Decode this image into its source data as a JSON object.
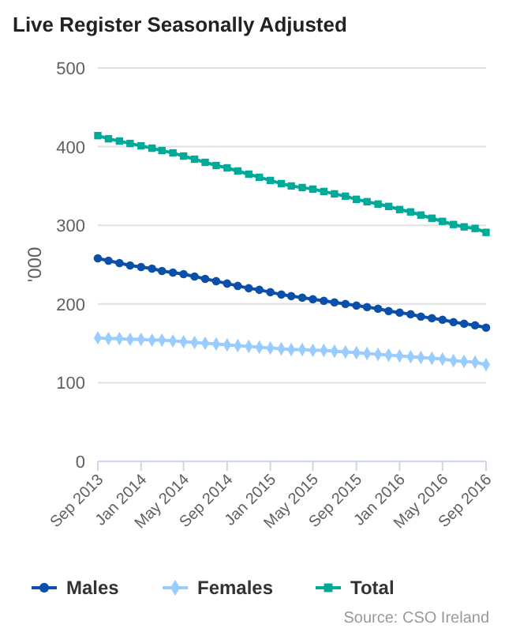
{
  "chart_data": {
    "type": "line",
    "title": "Live Register Seasonally Adjusted",
    "ylabel": "'000",
    "x": [
      "2013-09",
      "2013-10",
      "2013-11",
      "2013-12",
      "2014-01",
      "2014-02",
      "2014-03",
      "2014-04",
      "2014-05",
      "2014-06",
      "2014-07",
      "2014-08",
      "2014-09",
      "2014-10",
      "2014-11",
      "2014-12",
      "2015-01",
      "2015-02",
      "2015-03",
      "2015-04",
      "2015-05",
      "2015-06",
      "2015-07",
      "2015-08",
      "2015-09",
      "2015-10",
      "2015-11",
      "2015-12",
      "2016-01",
      "2016-02",
      "2016-03",
      "2016-04",
      "2016-05",
      "2016-06",
      "2016-07",
      "2016-08",
      "2016-09"
    ],
    "series": [
      {
        "name": "Males",
        "color": "#0a4fa8",
        "marker": "circle",
        "values": [
          258,
          255,
          252,
          249,
          247,
          245,
          242,
          240,
          238,
          235,
          232,
          229,
          226,
          223,
          220,
          218,
          215,
          212,
          210,
          208,
          206,
          204,
          202,
          200,
          198,
          196,
          194,
          191,
          189,
          187,
          184,
          182,
          180,
          177,
          175,
          173,
          170
        ]
      },
      {
        "name": "Females",
        "color": "#99ccff",
        "marker": "diamond",
        "values": [
          157,
          156,
          156,
          155,
          155,
          154,
          154,
          153,
          152,
          151,
          150,
          149,
          148,
          147,
          146,
          145,
          144,
          143,
          142,
          142,
          141,
          141,
          140,
          139,
          138,
          137,
          136,
          135,
          134,
          133,
          132,
          131,
          130,
          128,
          127,
          126,
          123
        ]
      },
      {
        "name": "Total",
        "color": "#00aa99",
        "marker": "square",
        "values": [
          414,
          410,
          407,
          404,
          401,
          398,
          395,
          392,
          388,
          384,
          380,
          376,
          373,
          369,
          365,
          361,
          357,
          353,
          350,
          348,
          346,
          343,
          340,
          337,
          333,
          330,
          327,
          324,
          320,
          317,
          313,
          309,
          305,
          301,
          298,
          296,
          291
        ]
      }
    ],
    "xlim": [
      "2013-09",
      "2016-09"
    ],
    "xticks": [
      {
        "value": "2013-09",
        "label": "Sep 2013"
      },
      {
        "value": "2014-01",
        "label": "Jan 2014"
      },
      {
        "value": "2014-05",
        "label": "May 2014"
      },
      {
        "value": "2014-09",
        "label": "Sep 2014"
      },
      {
        "value": "2015-01",
        "label": "Jan 2015"
      },
      {
        "value": "2015-05",
        "label": "May 2015"
      },
      {
        "value": "2015-09",
        "label": "Sep 2015"
      },
      {
        "value": "2016-01",
        "label": "Jan 2016"
      },
      {
        "value": "2016-05",
        "label": "May 2016"
      },
      {
        "value": "2016-09",
        "label": "Sep 2016"
      }
    ],
    "ylim": [
      0,
      500
    ],
    "yticks": [
      0,
      100,
      200,
      300,
      400,
      500
    ],
    "grid": "y",
    "legend": "bottom",
    "line_style": "solid",
    "annotations": [
      "Source: CSO Ireland"
    ]
  }
}
